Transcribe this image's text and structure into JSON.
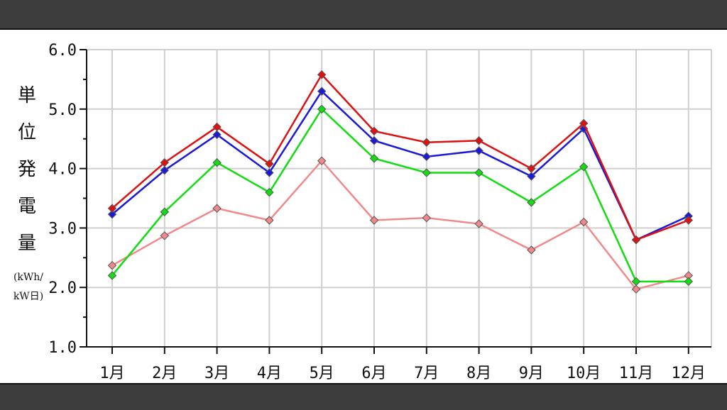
{
  "chart_data": {
    "type": "line",
    "categories": [
      "1月",
      "2月",
      "3月",
      "4月",
      "5月",
      "6月",
      "7月",
      "8月",
      "9月",
      "10月",
      "11月",
      "12月"
    ],
    "series": [
      {
        "color": "#dd1111",
        "values": [
          3.33,
          4.1,
          4.7,
          4.08,
          5.58,
          4.63,
          4.44,
          4.47,
          4.0,
          4.76,
          2.8,
          3.13
        ]
      },
      {
        "color": "#1a1ad8",
        "values": [
          3.23,
          3.97,
          4.57,
          3.93,
          5.3,
          4.47,
          4.2,
          4.3,
          3.87,
          4.67,
          2.8,
          3.2
        ]
      },
      {
        "color": "#11dd11",
        "values": [
          2.2,
          3.27,
          4.1,
          3.6,
          5.0,
          4.17,
          3.93,
          3.93,
          3.43,
          4.03,
          2.1,
          2.1
        ]
      },
      {
        "color": "#f08a8a",
        "values": [
          2.37,
          2.87,
          3.33,
          3.13,
          4.13,
          3.13,
          3.17,
          3.07,
          2.63,
          3.1,
          1.97,
          2.2
        ]
      }
    ],
    "ylim": [
      1.0,
      6.0
    ],
    "yticks": [
      "1.0",
      "2.0",
      "3.0",
      "4.0",
      "5.0",
      "6.0"
    ],
    "ylabel_chars": [
      "単",
      "位",
      "発",
      "電",
      "量"
    ],
    "ylabel_unit": [
      "(kWh/",
      "kW日)"
    ],
    "grid": true,
    "legend": "none"
  }
}
